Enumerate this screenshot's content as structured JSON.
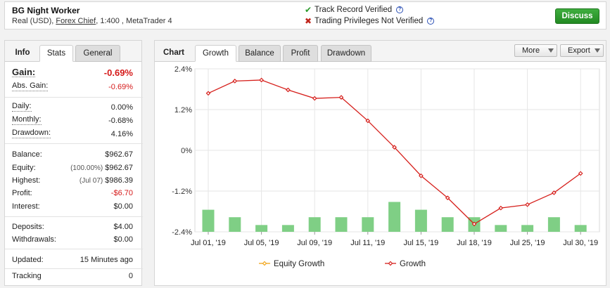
{
  "header": {
    "account_name": "BG Night Worker",
    "account_type": "Real (USD),",
    "broker": "Forex Chief",
    "leverage_platform": ", 1:400 , MetaTrader 4",
    "track_record": "Track Record Verified",
    "trading_privileges": "Trading Privileges Not Verified",
    "help_glyph": "?",
    "discuss_label": "Discuss"
  },
  "left_tabs": {
    "info": "Info",
    "stats": "Stats",
    "general": "General"
  },
  "stats": {
    "gain": {
      "label": "Gain:",
      "value": "-0.69%"
    },
    "abs_gain": {
      "label": "Abs. Gain:",
      "value": "-0.69%"
    },
    "daily": {
      "label": "Daily:",
      "value": "0.00%"
    },
    "monthly": {
      "label": "Monthly:",
      "value": "-0.68%"
    },
    "drawdown": {
      "label": "Drawdown:",
      "value": "4.16%"
    },
    "balance": {
      "label": "Balance:",
      "value": "$962.67"
    },
    "equity": {
      "label": "Equity:",
      "prefix": "(100.00%)",
      "value": "$962.67"
    },
    "highest": {
      "label": "Highest:",
      "prefix": "(Jul 07)",
      "value": "$986.39"
    },
    "profit": {
      "label": "Profit:",
      "value": "-$6.70"
    },
    "interest": {
      "label": "Interest:",
      "value": "$0.00"
    },
    "deposits": {
      "label": "Deposits:",
      "value": "$4.00"
    },
    "withdrawals": {
      "label": "Withdrawals:",
      "value": "$0.00"
    },
    "updated": {
      "label": "Updated:",
      "value": "15 Minutes ago"
    },
    "tracking": {
      "label": "Tracking",
      "value": "0"
    }
  },
  "right_tabs": {
    "chart": "Chart",
    "growth": "Growth",
    "balance": "Balance",
    "profit": "Profit",
    "drawdown": "Drawdown",
    "more": "More",
    "export": "Export"
  },
  "chart_data": {
    "type": "line",
    "y_tick_labels": [
      "2.4%",
      "1.2%",
      "0%",
      "-1.2%",
      "-2.4%"
    ],
    "y_ticks": [
      2.4,
      1.2,
      0,
      -1.2,
      -2.4
    ],
    "ylim": [
      -2.4,
      2.4
    ],
    "x_tick_labels": [
      "Jul 01, '19",
      "Jul 05, '19",
      "Jul 09, '19",
      "Jul 11, '19",
      "Jul 15, '19",
      "Jul 18, '19",
      "Jul 25, '19",
      "Jul 30, '19"
    ],
    "x_tick_positions": [
      0,
      2,
      4,
      6,
      8,
      10,
      12,
      14
    ],
    "point_count": 15,
    "series": [
      {
        "name": "Equity Growth",
        "color": "#f2a51a",
        "values": []
      },
      {
        "name": "Growth",
        "color": "#d6201c",
        "values": [
          1.68,
          2.04,
          2.07,
          1.78,
          1.53,
          1.56,
          0.87,
          0.09,
          -0.75,
          -1.4,
          -2.17,
          -1.7,
          -1.6,
          -1.25,
          -0.68
        ]
      }
    ],
    "bars": {
      "color": "#7fcf85",
      "values": [
        0.65,
        0.43,
        0.2,
        0.2,
        0.43,
        0.43,
        0.43,
        0.88,
        0.65,
        0.43,
        0.43,
        0.2,
        0.2,
        0.43,
        0.2
      ]
    },
    "grid": true,
    "legend_position": "bottom"
  }
}
